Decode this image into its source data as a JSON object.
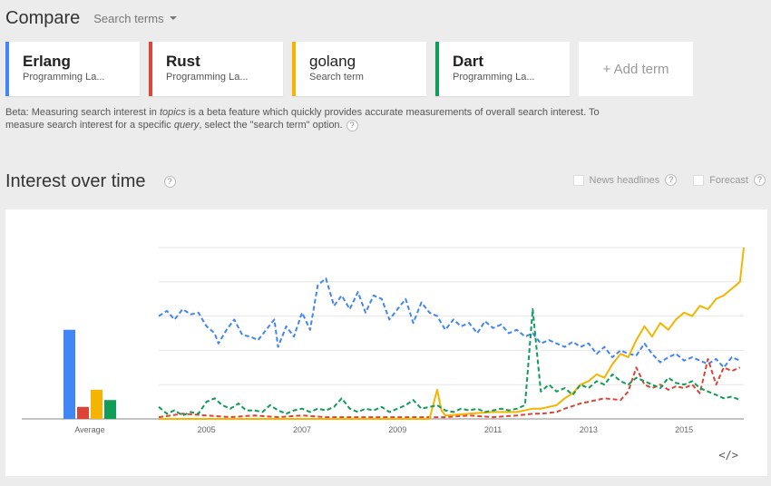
{
  "header": {
    "title": "Compare",
    "search_terms_label": "Search terms"
  },
  "terms": [
    {
      "name": "Erlang",
      "sub": "Programming La...",
      "color": "#4285f4",
      "bold": true
    },
    {
      "name": "Rust",
      "sub": "Programming La...",
      "color": "#db4437",
      "bold": true
    },
    {
      "name": "golang",
      "sub": "Search term",
      "color": "#f4b400",
      "bold": false
    },
    {
      "name": "Dart",
      "sub": "Programming La...",
      "color": "#0f9d58",
      "bold": true
    }
  ],
  "add_term_label": "+ Add term",
  "beta_note": {
    "part1": "Beta: Measuring search interest in ",
    "topics": "topics",
    "part2": " is a beta feature which quickly provides accurate measurements of overall search interest. To measure search interest for a specific ",
    "query": "query",
    "part3": ", select the \"search term\" option."
  },
  "section": {
    "title": "Interest over time",
    "help": "?"
  },
  "options": {
    "news": "News headlines",
    "forecast": "Forecast"
  },
  "embed_label": "</>",
  "chart_data": {
    "type": "line",
    "x_range": [
      2004.0,
      2016.25
    ],
    "y_range": [
      0,
      100
    ],
    "xticks": [
      2005,
      2007,
      2009,
      2011,
      2013,
      2015
    ],
    "average_label": "Average",
    "averages": [
      {
        "name": "Erlang",
        "value": 52,
        "color": "#4285f4"
      },
      {
        "name": "Rust",
        "value": 7,
        "color": "#db4437"
      },
      {
        "name": "golang",
        "value": 17,
        "color": "#f4b400"
      },
      {
        "name": "Dart",
        "value": 11,
        "color": "#0f9d58"
      }
    ],
    "series": [
      {
        "name": "Erlang",
        "color": "#4285f4",
        "points": [
          [
            2004.0,
            60
          ],
          [
            2004.17,
            63
          ],
          [
            2004.33,
            58
          ],
          [
            2004.5,
            64
          ],
          [
            2004.67,
            61
          ],
          [
            2004.83,
            62
          ],
          [
            2005.0,
            54
          ],
          [
            2005.17,
            50
          ],
          [
            2005.25,
            44
          ],
          [
            2005.42,
            52
          ],
          [
            2005.58,
            58
          ],
          [
            2005.75,
            49
          ],
          [
            2005.92,
            48
          ],
          [
            2006.08,
            46
          ],
          [
            2006.25,
            52
          ],
          [
            2006.42,
            58
          ],
          [
            2006.5,
            42
          ],
          [
            2006.67,
            54
          ],
          [
            2006.83,
            48
          ],
          [
            2007.0,
            62
          ],
          [
            2007.17,
            52
          ],
          [
            2007.33,
            78
          ],
          [
            2007.5,
            82
          ],
          [
            2007.67,
            66
          ],
          [
            2007.83,
            72
          ],
          [
            2008.0,
            64
          ],
          [
            2008.17,
            74
          ],
          [
            2008.33,
            62
          ],
          [
            2008.5,
            72
          ],
          [
            2008.67,
            70
          ],
          [
            2008.83,
            58
          ],
          [
            2009.0,
            64
          ],
          [
            2009.17,
            70
          ],
          [
            2009.33,
            56
          ],
          [
            2009.5,
            68
          ],
          [
            2009.67,
            62
          ],
          [
            2009.83,
            60
          ],
          [
            2010.0,
            52
          ],
          [
            2010.17,
            58
          ],
          [
            2010.33,
            54
          ],
          [
            2010.5,
            56
          ],
          [
            2010.67,
            50
          ],
          [
            2010.83,
            57
          ],
          [
            2011.0,
            53
          ],
          [
            2011.17,
            55
          ],
          [
            2011.33,
            50
          ],
          [
            2011.5,
            52
          ],
          [
            2011.67,
            48
          ],
          [
            2011.83,
            50
          ],
          [
            2012.0,
            44
          ],
          [
            2012.17,
            46
          ],
          [
            2012.33,
            44
          ],
          [
            2012.5,
            42
          ],
          [
            2012.67,
            45
          ],
          [
            2012.83,
            42
          ],
          [
            2013.0,
            44
          ],
          [
            2013.17,
            38
          ],
          [
            2013.33,
            42
          ],
          [
            2013.5,
            36
          ],
          [
            2013.67,
            40
          ],
          [
            2013.83,
            38
          ],
          [
            2014.0,
            37
          ],
          [
            2014.17,
            44
          ],
          [
            2014.33,
            38
          ],
          [
            2014.5,
            33
          ],
          [
            2014.67,
            36
          ],
          [
            2014.83,
            38
          ],
          [
            2015.0,
            34
          ],
          [
            2015.17,
            36
          ],
          [
            2015.33,
            34
          ],
          [
            2015.5,
            32
          ],
          [
            2015.67,
            35
          ],
          [
            2015.83,
            30
          ],
          [
            2016.0,
            36
          ],
          [
            2016.17,
            34
          ]
        ]
      },
      {
        "name": "Rust",
        "color": "#db4437",
        "points": [
          [
            2004.0,
            1
          ],
          [
            2004.5,
            3
          ],
          [
            2005.0,
            2
          ],
          [
            2005.5,
            1
          ],
          [
            2006.0,
            2
          ],
          [
            2006.5,
            1
          ],
          [
            2007.0,
            2
          ],
          [
            2007.5,
            1
          ],
          [
            2008.0,
            1
          ],
          [
            2008.5,
            1
          ],
          [
            2009.0,
            1
          ],
          [
            2009.5,
            1
          ],
          [
            2010.0,
            1
          ],
          [
            2010.5,
            2
          ],
          [
            2011.0,
            1
          ],
          [
            2011.5,
            2
          ],
          [
            2011.83,
            3
          ],
          [
            2012.0,
            3
          ],
          [
            2012.33,
            4
          ],
          [
            2012.5,
            6
          ],
          [
            2012.83,
            9
          ],
          [
            2013.0,
            10
          ],
          [
            2013.33,
            12
          ],
          [
            2013.67,
            11
          ],
          [
            2013.83,
            16
          ],
          [
            2014.0,
            30
          ],
          [
            2014.17,
            20
          ],
          [
            2014.33,
            18
          ],
          [
            2014.5,
            20
          ],
          [
            2014.67,
            17
          ],
          [
            2014.83,
            19
          ],
          [
            2015.0,
            18
          ],
          [
            2015.17,
            20
          ],
          [
            2015.33,
            15
          ],
          [
            2015.5,
            35
          ],
          [
            2015.67,
            20
          ],
          [
            2015.83,
            30
          ],
          [
            2016.0,
            28
          ],
          [
            2016.17,
            30
          ]
        ]
      },
      {
        "name": "golang",
        "color": "#f4b400",
        "points": [
          [
            2004.0,
            0
          ],
          [
            2009.67,
            0
          ],
          [
            2009.83,
            17
          ],
          [
            2009.92,
            5
          ],
          [
            2010.0,
            2
          ],
          [
            2010.5,
            3
          ],
          [
            2011.0,
            4
          ],
          [
            2011.5,
            4
          ],
          [
            2011.83,
            6
          ],
          [
            2012.0,
            6
          ],
          [
            2012.33,
            8
          ],
          [
            2012.5,
            12
          ],
          [
            2012.67,
            15
          ],
          [
            2012.83,
            20
          ],
          [
            2013.0,
            22
          ],
          [
            2013.17,
            26
          ],
          [
            2013.33,
            24
          ],
          [
            2013.5,
            32
          ],
          [
            2013.67,
            38
          ],
          [
            2013.83,
            36
          ],
          [
            2014.0,
            46
          ],
          [
            2014.17,
            54
          ],
          [
            2014.33,
            48
          ],
          [
            2014.5,
            56
          ],
          [
            2014.67,
            52
          ],
          [
            2014.83,
            58
          ],
          [
            2015.0,
            62
          ],
          [
            2015.17,
            60
          ],
          [
            2015.33,
            66
          ],
          [
            2015.5,
            64
          ],
          [
            2015.67,
            70
          ],
          [
            2015.83,
            72
          ],
          [
            2016.0,
            76
          ],
          [
            2016.17,
            80
          ],
          [
            2016.25,
            100
          ]
        ]
      },
      {
        "name": "Dart",
        "color": "#0f9d58",
        "points": [
          [
            2004.0,
            7
          ],
          [
            2004.17,
            3
          ],
          [
            2004.33,
            5
          ],
          [
            2004.5,
            2
          ],
          [
            2004.67,
            4
          ],
          [
            2004.83,
            3
          ],
          [
            2005.0,
            10
          ],
          [
            2005.17,
            12
          ],
          [
            2005.33,
            8
          ],
          [
            2005.5,
            6
          ],
          [
            2005.67,
            9
          ],
          [
            2005.83,
            5
          ],
          [
            2006.0,
            5
          ],
          [
            2006.17,
            4
          ],
          [
            2006.33,
            8
          ],
          [
            2006.5,
            5
          ],
          [
            2006.67,
            3
          ],
          [
            2006.83,
            5
          ],
          [
            2007.0,
            6
          ],
          [
            2007.17,
            4
          ],
          [
            2007.33,
            6
          ],
          [
            2007.5,
            5
          ],
          [
            2007.67,
            7
          ],
          [
            2007.83,
            12
          ],
          [
            2008.0,
            6
          ],
          [
            2008.17,
            4
          ],
          [
            2008.33,
            6
          ],
          [
            2008.5,
            5
          ],
          [
            2008.67,
            7
          ],
          [
            2008.83,
            4
          ],
          [
            2009.0,
            6
          ],
          [
            2009.17,
            8
          ],
          [
            2009.33,
            11
          ],
          [
            2009.5,
            6
          ],
          [
            2009.67,
            7
          ],
          [
            2009.83,
            8
          ],
          [
            2010.0,
            5
          ],
          [
            2010.17,
            4
          ],
          [
            2010.33,
            6
          ],
          [
            2010.5,
            5
          ],
          [
            2010.67,
            6
          ],
          [
            2010.83,
            4
          ],
          [
            2011.0,
            5
          ],
          [
            2011.17,
            6
          ],
          [
            2011.33,
            5
          ],
          [
            2011.5,
            6
          ],
          [
            2011.67,
            8
          ],
          [
            2011.83,
            64
          ],
          [
            2012.0,
            16
          ],
          [
            2012.17,
            20
          ],
          [
            2012.33,
            16
          ],
          [
            2012.5,
            18
          ],
          [
            2012.67,
            14
          ],
          [
            2012.83,
            20
          ],
          [
            2013.0,
            18
          ],
          [
            2013.17,
            22
          ],
          [
            2013.33,
            20
          ],
          [
            2013.5,
            26
          ],
          [
            2013.67,
            22
          ],
          [
            2013.83,
            20
          ],
          [
            2014.0,
            24
          ],
          [
            2014.17,
            22
          ],
          [
            2014.33,
            20
          ],
          [
            2014.5,
            18
          ],
          [
            2014.67,
            24
          ],
          [
            2014.83,
            21
          ],
          [
            2015.0,
            20
          ],
          [
            2015.17,
            22
          ],
          [
            2015.33,
            18
          ],
          [
            2015.5,
            16
          ],
          [
            2015.67,
            14
          ],
          [
            2015.83,
            12
          ],
          [
            2016.0,
            13
          ],
          [
            2016.17,
            11
          ]
        ]
      }
    ]
  }
}
